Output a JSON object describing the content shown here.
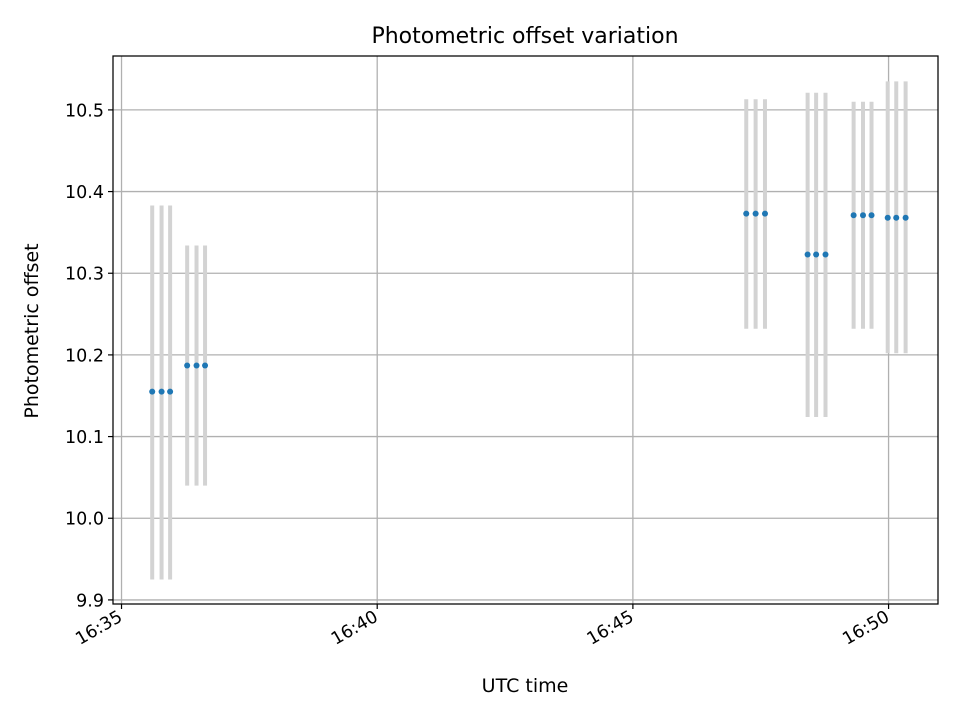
{
  "chart_data": {
    "type": "scatter",
    "title": "Photometric offset variation",
    "xlabel": "UTC time",
    "ylabel": "Photometric offset",
    "x_tick_labels": [
      "16:35",
      "16:40",
      "16:45",
      "16:50"
    ],
    "x_tick_values": [
      "16:35:00",
      "16:40:00",
      "16:45:00",
      "16:50:00"
    ],
    "y_ticks": [
      9.9,
      10.0,
      10.1,
      10.2,
      10.3,
      10.4,
      10.5
    ],
    "xlim": [
      "16:34:50",
      "16:50:58"
    ],
    "ylim": [
      9.895,
      10.566
    ],
    "grid": true,
    "legend": "none",
    "colors": {
      "points": "#1f77b4",
      "errorbars": "#d3d3d3",
      "grid": "#b0b0b0"
    },
    "points": [
      {
        "x": "16:35:36",
        "y": 10.155,
        "yerr": [
          9.925,
          10.383
        ]
      },
      {
        "x": "16:35:47",
        "y": 10.155,
        "yerr": [
          9.925,
          10.383
        ]
      },
      {
        "x": "16:35:57",
        "y": 10.155,
        "yerr": [
          9.925,
          10.383
        ]
      },
      {
        "x": "16:36:17",
        "y": 10.187,
        "yerr": [
          10.04,
          10.334
        ]
      },
      {
        "x": "16:36:28",
        "y": 10.187,
        "yerr": [
          10.04,
          10.334
        ]
      },
      {
        "x": "16:36:38",
        "y": 10.187,
        "yerr": [
          10.04,
          10.334
        ]
      },
      {
        "x": "16:47:13",
        "y": 10.373,
        "yerr": [
          10.232,
          10.513
        ]
      },
      {
        "x": "16:47:24",
        "y": 10.373,
        "yerr": [
          10.232,
          10.513
        ]
      },
      {
        "x": "16:47:35",
        "y": 10.373,
        "yerr": [
          10.232,
          10.513
        ]
      },
      {
        "x": "16:48:25",
        "y": 10.323,
        "yerr": [
          10.124,
          10.521
        ]
      },
      {
        "x": "16:48:35",
        "y": 10.323,
        "yerr": [
          10.124,
          10.521
        ]
      },
      {
        "x": "16:48:46",
        "y": 10.323,
        "yerr": [
          10.124,
          10.521
        ]
      },
      {
        "x": "16:49:19",
        "y": 10.371,
        "yerr": [
          10.232,
          10.51
        ]
      },
      {
        "x": "16:49:30",
        "y": 10.371,
        "yerr": [
          10.232,
          10.51
        ]
      },
      {
        "x": "16:49:40",
        "y": 10.371,
        "yerr": [
          10.232,
          10.51
        ]
      },
      {
        "x": "16:49:59",
        "y": 10.368,
        "yerr": [
          10.202,
          10.535
        ]
      },
      {
        "x": "16:50:09",
        "y": 10.368,
        "yerr": [
          10.202,
          10.535
        ]
      },
      {
        "x": "16:50:20",
        "y": 10.368,
        "yerr": [
          10.202,
          10.535
        ]
      }
    ]
  }
}
